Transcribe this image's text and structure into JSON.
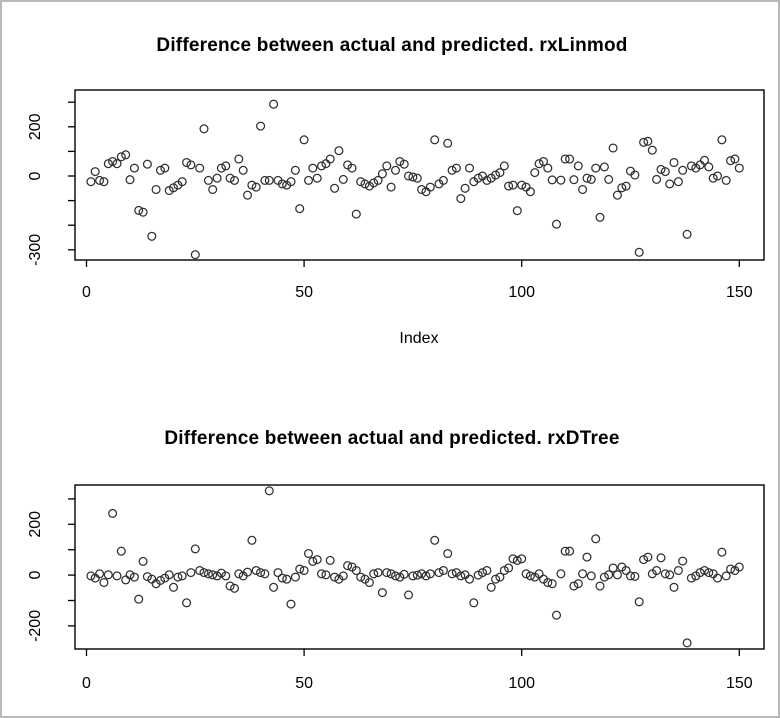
{
  "window": {
    "background": "#ffffff",
    "border_color": "#b9b9b9",
    "point_color": "#2e2e2e"
  },
  "chart_data": [
    {
      "type": "scatter",
      "title": "Difference between actual and predicted. rxLinmod",
      "xlabel": "Index",
      "ylabel": "",
      "marker": "open-circle",
      "x_start": 1,
      "x_range": [
        0,
        155
      ],
      "y_range": [
        -345,
        330
      ],
      "grid": false,
      "legend": "none",
      "x_ticks": [
        {
          "v": 0,
          "label": "0"
        },
        {
          "v": 50,
          "label": "50"
        },
        {
          "v": 100,
          "label": "100"
        },
        {
          "v": 150,
          "label": "150"
        }
      ],
      "y_ticks": [
        {
          "v": 300,
          "label": ""
        },
        {
          "v": 200,
          "label": "200"
        },
        {
          "v": 100,
          "label": ""
        },
        {
          "v": 0,
          "label": "0"
        },
        {
          "v": -100,
          "label": ""
        },
        {
          "v": -200,
          "label": ""
        },
        {
          "v": -300,
          "label": "-300"
        }
      ],
      "values": [
        -23,
        18,
        -18,
        -23,
        50,
        59,
        50,
        78,
        86,
        -15,
        32,
        -140,
        -147,
        48,
        -245,
        -55,
        23,
        32,
        -59,
        -48,
        -37,
        -23,
        55,
        45,
        -320,
        32,
        192,
        -18,
        -55,
        -9,
        32,
        41,
        -9,
        -18,
        69,
        23,
        -78,
        -37,
        -45,
        203,
        -18,
        -18,
        292,
        -18,
        -32,
        -37,
        -23,
        23,
        -133,
        147,
        -18,
        32,
        -9,
        41,
        50,
        69,
        -50,
        103,
        -14,
        45,
        32,
        -155,
        -23,
        -32,
        -41,
        -28,
        -18,
        9,
        41,
        -45,
        23,
        59,
        48,
        0,
        -4,
        -9,
        -55,
        -64,
        -45,
        147,
        -32,
        -18,
        133,
        23,
        32,
        -92,
        -50,
        32,
        -23,
        -9,
        0,
        -18,
        -9,
        4,
        14,
        41,
        -41,
        -37,
        -141,
        -37,
        -45,
        -64,
        14,
        50,
        59,
        32,
        -16,
        -196,
        -17,
        69,
        69,
        -15,
        41,
        -55,
        -9,
        -14,
        32,
        -168,
        37,
        -14,
        114,
        -78,
        -48,
        -41,
        20,
        4,
        -310,
        137,
        141,
        105,
        -14,
        27,
        18,
        -32,
        55,
        -23,
        23,
        -237,
        41,
        32,
        45,
        64,
        37,
        -9,
        0,
        147,
        -18,
        62,
        69,
        32
      ]
    },
    {
      "type": "scatter",
      "title": "Difference between actual and predicted. rxDTree",
      "xlabel": "",
      "ylabel": "",
      "marker": "open-circle",
      "x_start": 1,
      "x_range": [
        0,
        155
      ],
      "y_range": [
        -295,
        360
      ],
      "grid": false,
      "legend": "none",
      "x_ticks": [
        {
          "v": 0,
          "label": "0"
        },
        {
          "v": 50,
          "label": "50"
        },
        {
          "v": 100,
          "label": "100"
        },
        {
          "v": 150,
          "label": "150"
        }
      ],
      "y_ticks": [
        {
          "v": 300,
          "label": ""
        },
        {
          "v": 200,
          "label": "200"
        },
        {
          "v": 100,
          "label": ""
        },
        {
          "v": 0,
          "label": "0"
        },
        {
          "v": -100,
          "label": ""
        },
        {
          "v": -200,
          "label": "-200"
        }
      ],
      "values": [
        -3,
        -12,
        5,
        -29,
        1,
        243,
        -3,
        94,
        -19,
        1,
        -8,
        -95,
        54,
        -6,
        -16,
        -34,
        -21,
        -12,
        1,
        -48,
        -8,
        -3,
        -109,
        10,
        103,
        18,
        10,
        5,
        1,
        -3,
        8,
        -3,
        -43,
        -52,
        5,
        -3,
        12,
        137,
        18,
        10,
        5,
        332,
        -48,
        10,
        -12,
        -16,
        -114,
        -8,
        24,
        18,
        85,
        54,
        61,
        5,
        1,
        58,
        -8,
        -16,
        -3,
        37,
        32,
        18,
        -8,
        -16,
        -29,
        5,
        10,
        -69,
        10,
        5,
        -3,
        -8,
        3,
        -78,
        -3,
        0,
        5,
        -3,
        5,
        137,
        10,
        18,
        85,
        5,
        10,
        -3,
        1,
        -16,
        -109,
        0,
        10,
        18,
        -48,
        -16,
        -8,
        18,
        28,
        64,
        58,
        64,
        5,
        -3,
        -8,
        5,
        -16,
        -29,
        -34,
        -158,
        5,
        94,
        94,
        -43,
        -34,
        5,
        71,
        -3,
        143,
        -43,
        -8,
        1,
        28,
        1,
        32,
        18,
        -3,
        -5,
        -105,
        61,
        71,
        5,
        18,
        68,
        5,
        1,
        -48,
        18,
        55,
        -267,
        -12,
        -3,
        10,
        18,
        10,
        5,
        -12,
        90,
        -3,
        24,
        18,
        32
      ]
    }
  ]
}
